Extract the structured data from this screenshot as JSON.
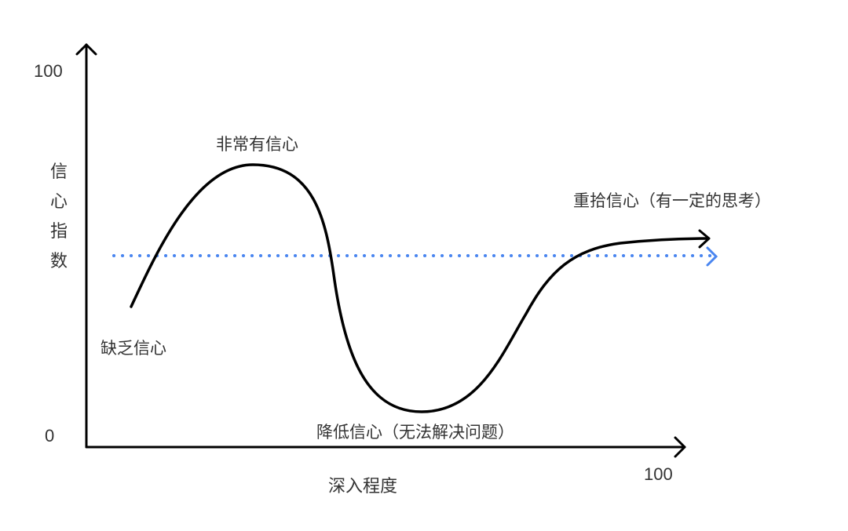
{
  "axes": {
    "y_label": "信心指数",
    "x_label": "深入程度",
    "y_max_label": "100",
    "y_min_label": "0",
    "x_max_label": "100"
  },
  "annotations": {
    "start": "缺乏信心",
    "peak": "非常有信心",
    "trough": "降低信心（无法解决问题）",
    "end": "重拾信心（有一定的思考）"
  },
  "colors": {
    "curve": "#000000",
    "reference_line": "#4a86f0",
    "text": "#333333"
  }
}
